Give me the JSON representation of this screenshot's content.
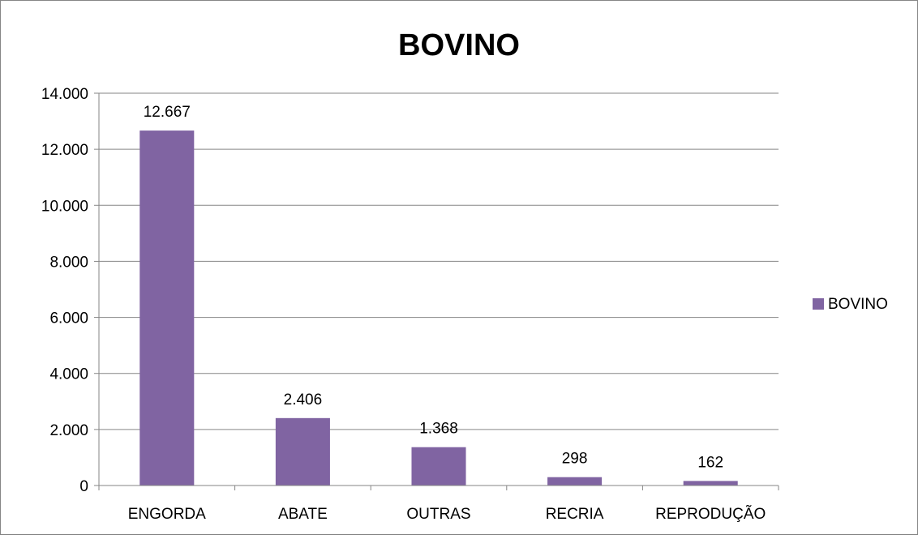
{
  "chart_data": {
    "type": "bar",
    "title": "BOVINO",
    "categories": [
      "ENGORDA",
      "ABATE",
      "OUTRAS",
      "RECRIA",
      "REPRODUÇÃO"
    ],
    "series": [
      {
        "name": "BOVINO",
        "values": [
          12667,
          2406,
          1368,
          298,
          162
        ],
        "data_labels": [
          "12.667",
          "2.406",
          "1.368",
          "298",
          "162"
        ],
        "color": "#8064a2"
      }
    ],
    "ylim": [
      0,
      14000
    ],
    "yticks": [
      0,
      2000,
      4000,
      6000,
      8000,
      10000,
      12000,
      14000
    ],
    "ytick_labels": [
      "0",
      "2.000",
      "4.000",
      "6.000",
      "8.000",
      "10.000",
      "12.000",
      "14.000"
    ],
    "xlabel": "",
    "ylabel": "",
    "grid": true,
    "legend_position": "right",
    "colors": {
      "bar": "#8064a2",
      "grid": "#868686",
      "axis": "#868686",
      "frame": "#868686",
      "text": "#000000"
    }
  }
}
